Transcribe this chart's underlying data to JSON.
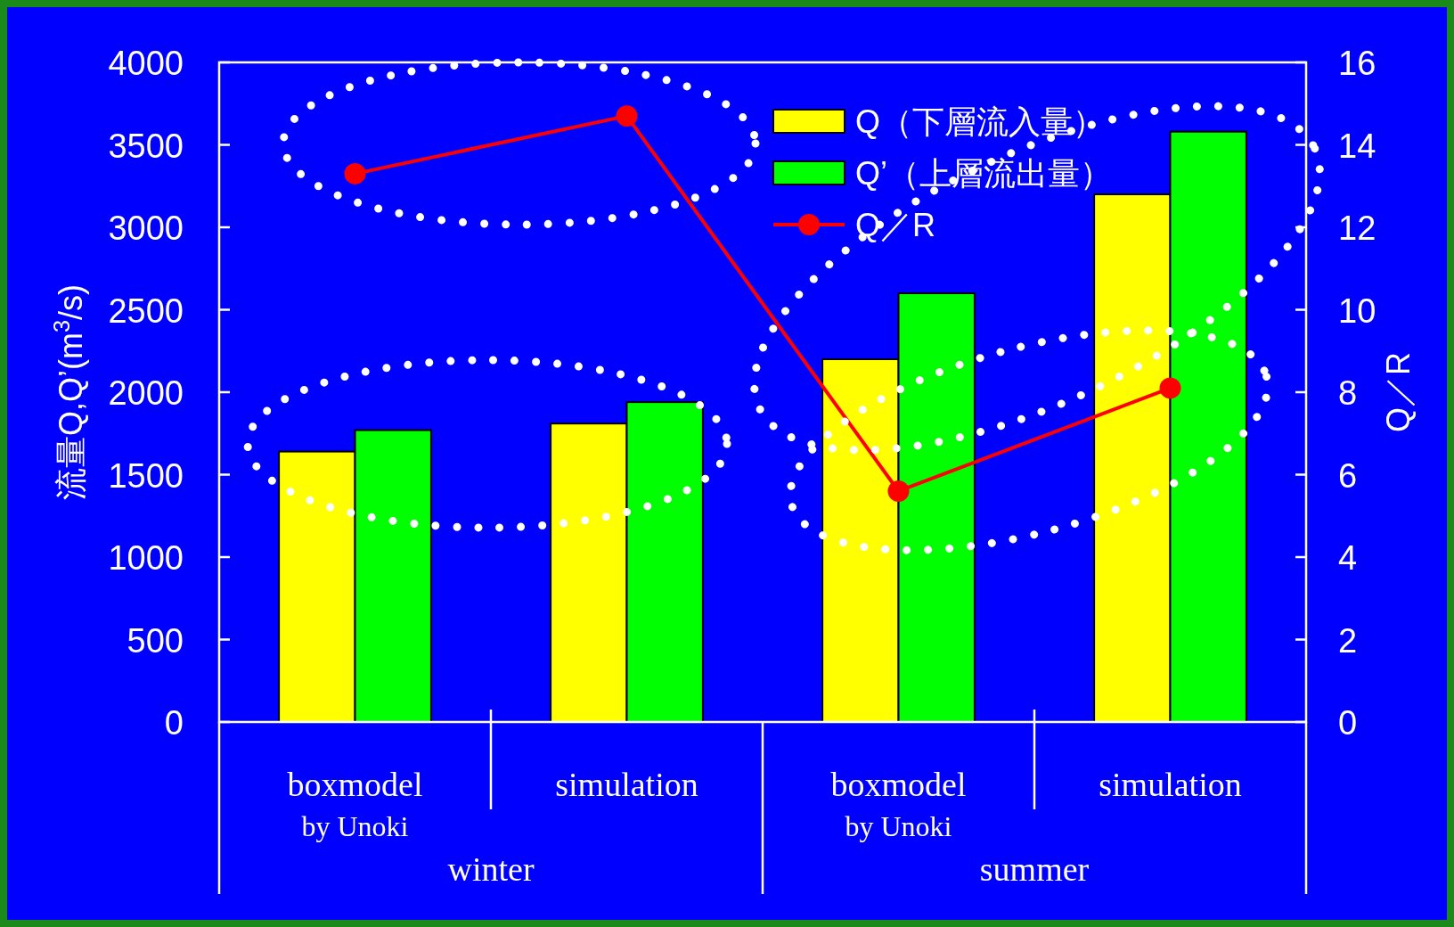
{
  "chart_data": {
    "type": "bar",
    "categories": [
      "boxmodel\nby Unoki",
      "simulation",
      "boxmodel\nby Unoki",
      "simulation"
    ],
    "series": [
      {
        "name": "Q（下層流入量）",
        "color": "#ffff00",
        "values": [
          1640,
          1810,
          2200,
          3200
        ]
      },
      {
        "name": "Q’（上層流出量）",
        "color": "#00ff00",
        "values": [
          1770,
          1940,
          2600,
          3580
        ]
      },
      {
        "name": "Q／R",
        "type": "line",
        "axis": "y2",
        "color": "#ff0000",
        "values": [
          13.3,
          14.7,
          5.6,
          8.1
        ]
      }
    ],
    "marker": "circle",
    "ylabel": "流量Q,Q’(m$^{3}$/s)",
    "y2label": "Q／R",
    "ylim": [
      0,
      4000
    ],
    "yticks": [
      0,
      500,
      1000,
      1500,
      2000,
      2500,
      3000,
      3500,
      4000
    ],
    "y2lim": [
      0,
      16
    ],
    "y2ticks": [
      0,
      2,
      4,
      6,
      8,
      10,
      12,
      14,
      16
    ],
    "legend": "top right",
    "annotations": [
      "winter",
      "summer"
    ]
  }
}
